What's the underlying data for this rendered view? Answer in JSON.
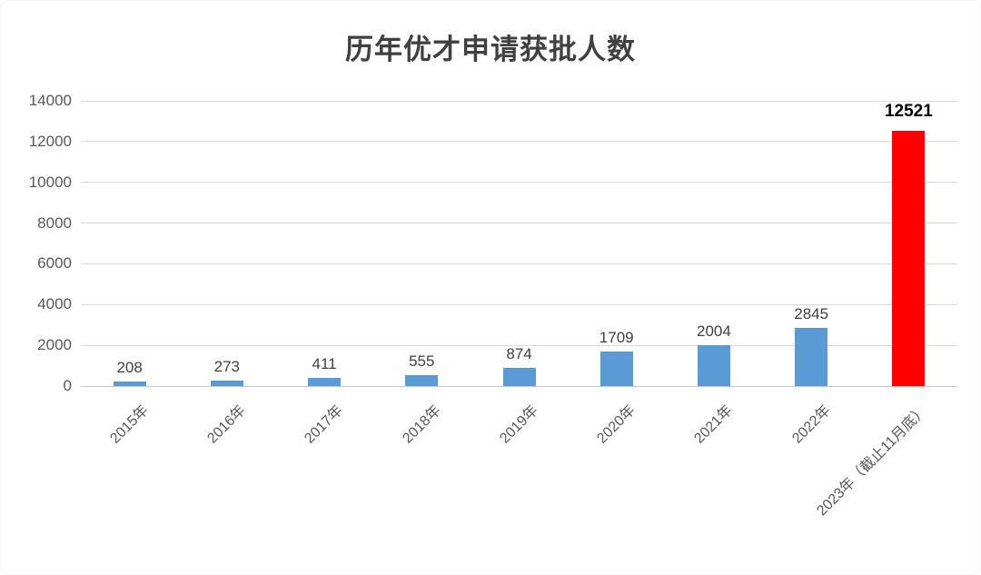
{
  "chart_data": {
    "type": "bar",
    "title": "历年优才申请获批人数",
    "categories": [
      "2015年",
      "2016年",
      "2017年",
      "2018年",
      "2019年",
      "2020年",
      "2021年",
      "2022年",
      "2023年（截止11月底）"
    ],
    "values": [
      208,
      273,
      411,
      555,
      874,
      1709,
      2004,
      2845,
      12521
    ],
    "bar_colors": [
      "#5B9BD5",
      "#5B9BD5",
      "#5B9BD5",
      "#5B9BD5",
      "#5B9BD5",
      "#5B9BD5",
      "#5B9BD5",
      "#5B9BD5",
      "#FF0000"
    ],
    "emphasized_index": 8,
    "data_labels_shown": true,
    "xlabel": "",
    "ylabel": "",
    "ylim": [
      0,
      14000
    ],
    "ytick_step": 2000,
    "yticks": [
      "0",
      "2000",
      "4000",
      "6000",
      "8000",
      "10000",
      "12000",
      "14000"
    ],
    "grid": "horizontal",
    "legend": "none",
    "x_label_rotation_deg": 45
  },
  "colors": {
    "bar_blue": "#5B9BD5",
    "bar_red": "#FF0000",
    "gridline": "#D9D9D9",
    "axis_text": "#595959",
    "data_label_text": "#404040",
    "title_text": "#404040",
    "emphasis_label_text": "#000000",
    "background": "#FFFFFF"
  }
}
